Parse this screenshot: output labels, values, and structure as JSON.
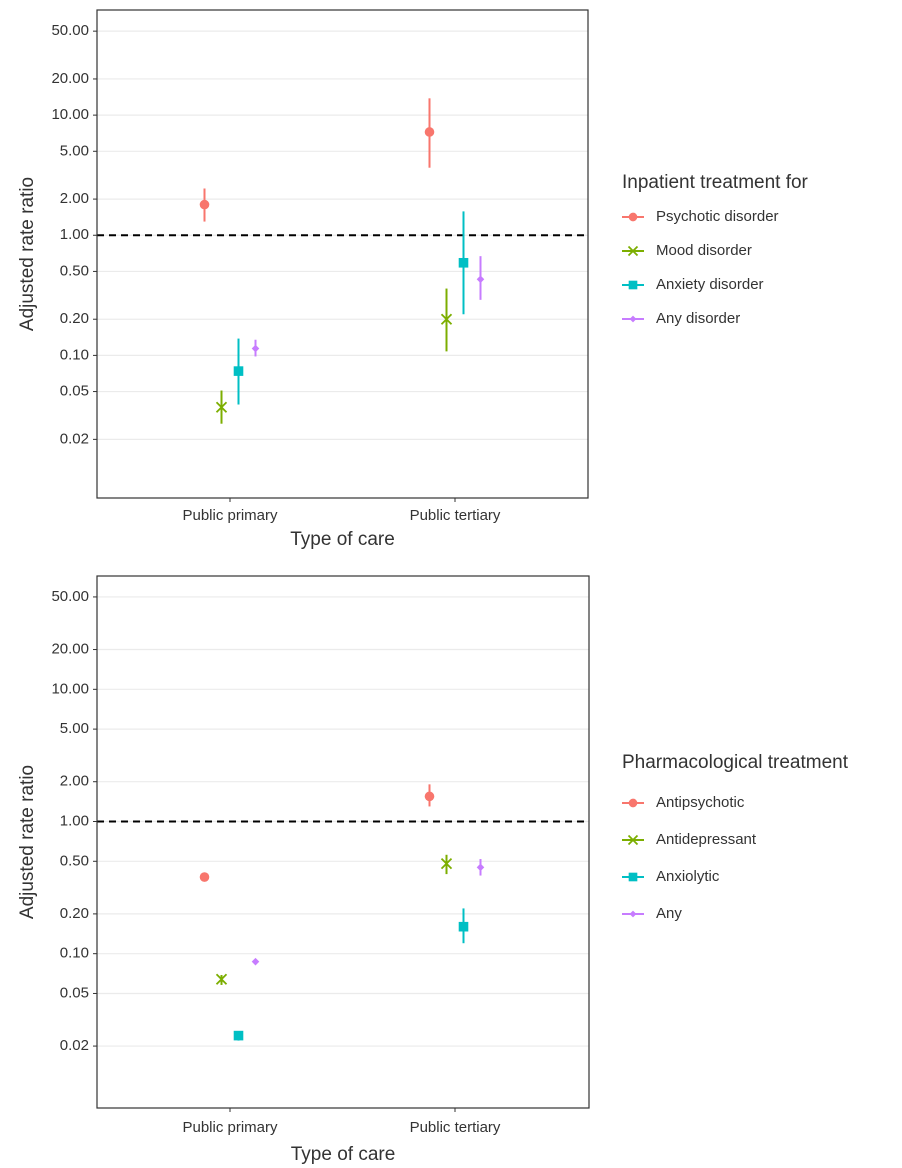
{
  "chart_data": [
    {
      "type": "errorbar",
      "log_y": true,
      "grid": true,
      "legend_position": "right",
      "xlabel": "Type of care",
      "ylabel": "Adjusted rate ratio",
      "legend_title": "Inpatient treatment for",
      "categories": [
        "Public primary",
        "Public tertiary"
      ],
      "hline": 1,
      "ylim": [
        0.0065,
        75
      ],
      "yticks": [
        0.02,
        0.05,
        {
          "value": 0.1,
          "label": "0.10"
        },
        {
          "value": 0.2,
          "label": "0.20"
        },
        {
          "value": 0.5,
          "label": "0.50"
        },
        {
          "value": 1,
          "label": "1.00"
        },
        {
          "value": 2,
          "label": "2.00"
        },
        {
          "value": 5,
          "label": "5.00"
        },
        {
          "value": 10,
          "label": "10.00"
        },
        {
          "value": 20,
          "label": "20.00"
        },
        {
          "value": 50,
          "label": "50.00"
        }
      ],
      "series": [
        {
          "name": "Psychotic disorder",
          "color": "#F8766D",
          "marker": "circle",
          "values": [
            1.8,
            7.24
          ],
          "lower": [
            1.3,
            3.65
          ],
          "upper": [
            2.45,
            13.8
          ]
        },
        {
          "name": "Mood disorder",
          "color": "#7CAE00",
          "marker": "x",
          "values": [
            0.037,
            0.2
          ],
          "lower": [
            0.027,
            0.108
          ],
          "upper": [
            0.051,
            0.36
          ]
        },
        {
          "name": "Anxiety disorder",
          "color": "#00BFC4",
          "marker": "square",
          "values": [
            0.074,
            0.59
          ],
          "lower": [
            0.039,
            0.22
          ],
          "upper": [
            0.138,
            1.58
          ]
        },
        {
          "name": "Any disorder",
          "color": "#C77CFF",
          "marker": "diamond",
          "values": [
            0.114,
            0.43
          ],
          "lower": [
            0.098,
            0.29
          ],
          "upper": [
            0.135,
            0.67
          ]
        }
      ]
    },
    {
      "type": "errorbar",
      "log_y": true,
      "grid": true,
      "legend_position": "right",
      "xlabel": "Type of care",
      "ylabel": "Adjusted rate ratio",
      "legend_title": "Pharmacological treatment",
      "categories": [
        "Public primary",
        "Public tertiary"
      ],
      "hline": 1,
      "ylim": [
        0.0068,
        72
      ],
      "yticks": [
        0.02,
        0.05,
        {
          "value": 0.1,
          "label": "0.10"
        },
        {
          "value": 0.2,
          "label": "0.20"
        },
        {
          "value": 0.5,
          "label": "0.50"
        },
        {
          "value": 1,
          "label": "1.00"
        },
        {
          "value": 2,
          "label": "2.00"
        },
        {
          "value": 5,
          "label": "5.00"
        },
        {
          "value": 10,
          "label": "10.00"
        },
        {
          "value": 20,
          "label": "20.00"
        },
        {
          "value": 50,
          "label": "50.00"
        }
      ],
      "series": [
        {
          "name": "Antipsychotic",
          "color": "#F8766D",
          "marker": "circle",
          "values": [
            0.38,
            1.55
          ],
          "lower": [
            0.37,
            1.3
          ],
          "upper": [
            0.4,
            1.91
          ]
        },
        {
          "name": "Antidepressant",
          "color": "#7CAE00",
          "marker": "x",
          "values": [
            0.064,
            0.48
          ],
          "lower": [
            0.058,
            0.4
          ],
          "upper": [
            0.069,
            0.56
          ]
        },
        {
          "name": "Anxiolytic",
          "color": "#00BFC4",
          "marker": "square",
          "values": [
            0.024,
            0.16
          ],
          "lower": [
            0.022,
            0.12
          ],
          "upper": [
            0.026,
            0.22
          ]
        },
        {
          "name": "Any",
          "color": "#C77CFF",
          "marker": "diamond",
          "values": [
            0.087,
            0.45
          ],
          "lower": [
            0.084,
            0.39
          ],
          "upper": [
            0.09,
            0.52
          ]
        }
      ]
    }
  ]
}
